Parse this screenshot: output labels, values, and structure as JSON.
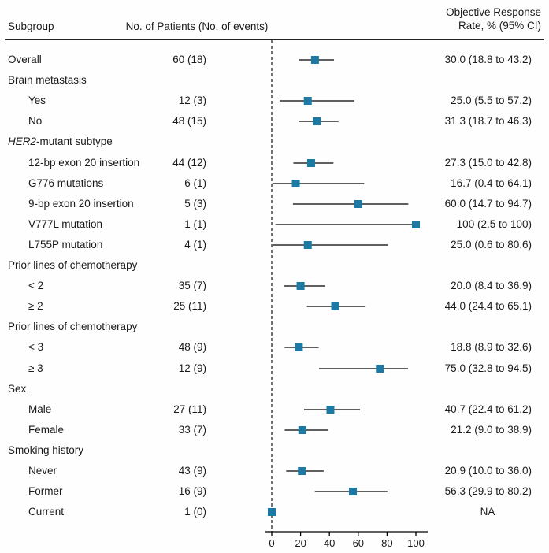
{
  "header": {
    "col_subgroup": "Subgroup",
    "col_patients": "No. of Patients (No. of events)",
    "col_orr_line1": "Objective Response",
    "col_orr_line2": "Rate, % (95% CI)"
  },
  "colors": {
    "marker": "#1b79a3",
    "line": "#000000",
    "text": "#1a1a1a"
  },
  "chart_data": {
    "type": "scatter",
    "subtype": "forest-plot",
    "title": "",
    "xlabel": "",
    "x_axis": {
      "lim": [
        0,
        100
      ],
      "ticks": [
        0,
        20,
        40,
        60,
        80,
        100
      ],
      "reference_line_x": 0
    },
    "legend": "none",
    "rows": [
      {
        "label": "Overall",
        "indent": 0,
        "group_header": false,
        "patients": "60 (18)",
        "orr": "30.0 (18.8 to 43.2)",
        "estimate": 30.0,
        "ci_low": 18.8,
        "ci_high": 43.2
      },
      {
        "label": "Brain metastasis",
        "indent": 0,
        "group_header": true,
        "patients": "",
        "orr": "",
        "estimate": null,
        "ci_low": null,
        "ci_high": null
      },
      {
        "label": "Yes",
        "indent": 1,
        "group_header": false,
        "patients": "12 (3)",
        "orr": "25.0 (5.5 to 57.2)",
        "estimate": 25.0,
        "ci_low": 5.5,
        "ci_high": 57.2
      },
      {
        "label": "No",
        "indent": 1,
        "group_header": false,
        "patients": "48 (15)",
        "orr": "31.3 (18.7 to 46.3)",
        "estimate": 31.3,
        "ci_low": 18.7,
        "ci_high": 46.3
      },
      {
        "label": "HER2-mutant subtype",
        "italic_prefix": "HER2",
        "indent": 0,
        "group_header": true,
        "patients": "",
        "orr": "",
        "estimate": null,
        "ci_low": null,
        "ci_high": null
      },
      {
        "label": "12-bp exon 20 insertion",
        "indent": 1,
        "group_header": false,
        "patients": "44 (12)",
        "orr": "27.3 (15.0 to 42.8)",
        "estimate": 27.3,
        "ci_low": 15.0,
        "ci_high": 42.8
      },
      {
        "label": "G776 mutations",
        "indent": 1,
        "group_header": false,
        "patients": "6 (1)",
        "orr": "16.7 (0.4 to 64.1)",
        "estimate": 16.7,
        "ci_low": 0.4,
        "ci_high": 64.1
      },
      {
        "label": "9-bp exon 20 insertion",
        "indent": 1,
        "group_header": false,
        "patients": "5 (3)",
        "orr": "60.0 (14.7 to 94.7)",
        "estimate": 60.0,
        "ci_low": 14.7,
        "ci_high": 94.7
      },
      {
        "label": "V777L mutation",
        "indent": 1,
        "group_header": false,
        "patients": "1 (1)",
        "orr": "100 (2.5 to 100)",
        "estimate": 100,
        "ci_low": 2.5,
        "ci_high": 100
      },
      {
        "label": "L755P mutation",
        "indent": 1,
        "group_header": false,
        "patients": "4 (1)",
        "orr": "25.0 (0.6 to 80.6)",
        "estimate": 25.0,
        "ci_low": 0.6,
        "ci_high": 80.6
      },
      {
        "label": "Prior lines of chemotherapy",
        "indent": 0,
        "group_header": true,
        "patients": "",
        "orr": "",
        "estimate": null,
        "ci_low": null,
        "ci_high": null
      },
      {
        "label": "< 2",
        "indent": 1,
        "group_header": false,
        "patients": "35 (7)",
        "orr": "20.0 (8.4 to 36.9)",
        "estimate": 20.0,
        "ci_low": 8.4,
        "ci_high": 36.9
      },
      {
        "label": "≥ 2",
        "indent": 1,
        "group_header": false,
        "patients": "25 (11)",
        "orr": "44.0 (24.4 to 65.1)",
        "estimate": 44.0,
        "ci_low": 24.4,
        "ci_high": 65.1
      },
      {
        "label": "Prior lines of chemotherapy",
        "indent": 0,
        "group_header": true,
        "patients": "",
        "orr": "",
        "estimate": null,
        "ci_low": null,
        "ci_high": null
      },
      {
        "label": "< 3",
        "indent": 1,
        "group_header": false,
        "patients": "48 (9)",
        "orr": "18.8 (8.9 to 32.6)",
        "estimate": 18.8,
        "ci_low": 8.9,
        "ci_high": 32.6
      },
      {
        "label": "≥ 3",
        "indent": 1,
        "group_header": false,
        "patients": "12 (9)",
        "orr": "75.0 (32.8 to 94.5)",
        "estimate": 75.0,
        "ci_low": 32.8,
        "ci_high": 94.5
      },
      {
        "label": "Sex",
        "indent": 0,
        "group_header": true,
        "patients": "",
        "orr": "",
        "estimate": null,
        "ci_low": null,
        "ci_high": null
      },
      {
        "label": "Male",
        "indent": 1,
        "group_header": false,
        "patients": "27 (11)",
        "orr": "40.7 (22.4 to 61.2)",
        "estimate": 40.7,
        "ci_low": 22.4,
        "ci_high": 61.2
      },
      {
        "label": "Female",
        "indent": 1,
        "group_header": false,
        "patients": "33 (7)",
        "orr": "21.2 (9.0 to 38.9)",
        "estimate": 21.2,
        "ci_low": 9.0,
        "ci_high": 38.9
      },
      {
        "label": "Smoking history",
        "indent": 0,
        "group_header": true,
        "patients": "",
        "orr": "",
        "estimate": null,
        "ci_low": null,
        "ci_high": null
      },
      {
        "label": "Never",
        "indent": 1,
        "group_header": false,
        "patients": "43 (9)",
        "orr": "20.9 (10.0 to 36.0)",
        "estimate": 20.9,
        "ci_low": 10.0,
        "ci_high": 36.0
      },
      {
        "label": "Former",
        "indent": 1,
        "group_header": false,
        "patients": "16 (9)",
        "orr": "56.3 (29.9 to 80.2)",
        "estimate": 56.3,
        "ci_low": 29.9,
        "ci_high": 80.2
      },
      {
        "label": "Current",
        "indent": 1,
        "group_header": false,
        "patients": "1 (0)",
        "orr": "NA",
        "estimate": 0,
        "ci_low": null,
        "ci_high": null
      }
    ]
  }
}
